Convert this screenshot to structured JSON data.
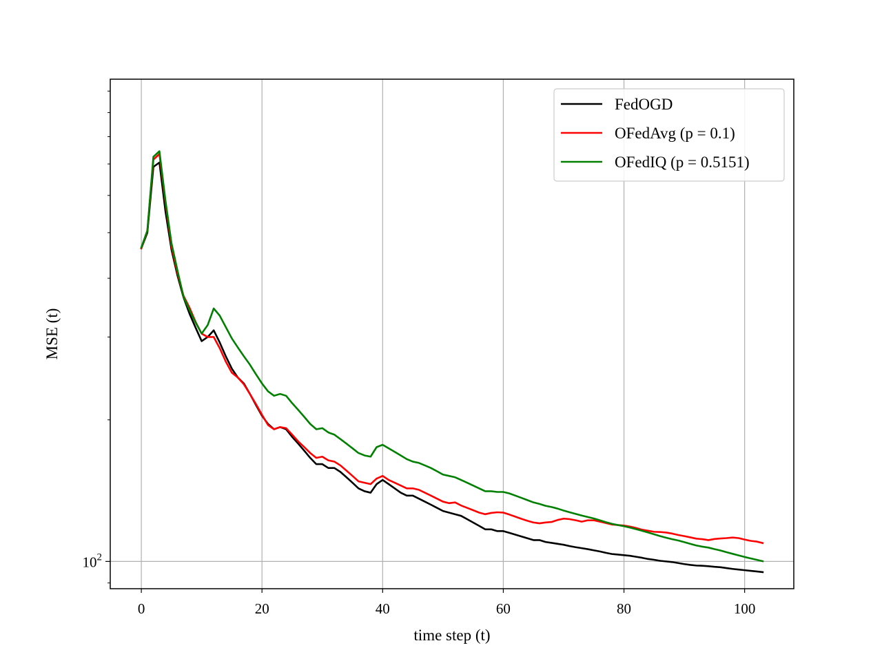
{
  "chart_data": {
    "type": "line",
    "title": "",
    "xlabel": "time step (t)",
    "ylabel": "MSE (t)",
    "xlim": [
      -5.15,
      108.15
    ],
    "ylim": [
      87.5,
      1060
    ],
    "yscale": "log",
    "grid": true,
    "legend_position": "top-right",
    "xticks": [
      0,
      20,
      40,
      60,
      80,
      100
    ],
    "xtick_labels": [
      "0",
      "20",
      "40",
      "60",
      "80",
      "100"
    ],
    "ytick_major": {
      "value": 100,
      "base": "10",
      "exponent": "2"
    },
    "series": [
      {
        "name": "FedOGD",
        "color": "#000000",
        "points": [
          [
            0,
            463
          ],
          [
            1,
            500
          ],
          [
            2,
            690
          ],
          [
            3,
            705
          ],
          [
            4,
            555
          ],
          [
            5,
            460
          ],
          [
            6,
            405
          ],
          [
            7,
            364
          ],
          [
            8,
            336
          ],
          [
            9,
            314
          ],
          [
            10,
            294
          ],
          [
            11,
            300
          ],
          [
            12,
            310
          ],
          [
            13,
            292
          ],
          [
            14,
            273
          ],
          [
            15,
            257
          ],
          [
            16,
            246
          ],
          [
            17,
            239
          ],
          [
            18,
            227
          ],
          [
            19,
            215
          ],
          [
            20,
            204
          ],
          [
            21,
            196
          ],
          [
            22,
            191
          ],
          [
            23,
            193
          ],
          [
            24,
            191
          ],
          [
            25,
            184
          ],
          [
            26,
            178
          ],
          [
            27,
            172
          ],
          [
            28,
            166
          ],
          [
            29,
            161
          ],
          [
            30,
            161
          ],
          [
            31,
            158
          ],
          [
            32,
            158
          ],
          [
            33,
            155
          ],
          [
            34,
            151
          ],
          [
            35,
            147
          ],
          [
            36,
            143
          ],
          [
            37,
            141
          ],
          [
            38,
            140
          ],
          [
            39,
            146
          ],
          [
            40,
            149
          ],
          [
            41,
            146
          ],
          [
            42,
            143
          ],
          [
            43,
            140
          ],
          [
            44,
            138
          ],
          [
            45,
            138
          ],
          [
            46,
            136
          ],
          [
            47,
            134
          ],
          [
            48,
            132
          ],
          [
            49,
            130
          ],
          [
            50,
            128
          ],
          [
            51,
            127
          ],
          [
            52,
            126
          ],
          [
            53,
            125
          ],
          [
            54,
            123
          ],
          [
            55,
            121
          ],
          [
            56,
            119
          ],
          [
            57,
            117
          ],
          [
            58,
            117
          ],
          [
            59,
            116
          ],
          [
            60,
            116
          ],
          [
            61,
            115
          ],
          [
            62,
            114
          ],
          [
            63,
            113
          ],
          [
            64,
            112
          ],
          [
            65,
            111
          ],
          [
            66,
            111
          ],
          [
            67,
            110
          ],
          [
            68,
            109.5
          ],
          [
            69,
            109
          ],
          [
            70,
            108.5
          ],
          [
            71,
            107.8
          ],
          [
            72,
            107.2
          ],
          [
            73,
            106.7
          ],
          [
            74,
            106.2
          ],
          [
            75,
            105.6
          ],
          [
            76,
            105
          ],
          [
            77,
            104.3
          ],
          [
            78,
            103.7
          ],
          [
            79,
            103.4
          ],
          [
            80,
            103.1
          ],
          [
            81,
            102.8
          ],
          [
            82,
            102.3
          ],
          [
            83,
            101.8
          ],
          [
            84,
            101.2
          ],
          [
            85,
            100.8
          ],
          [
            86,
            100.3
          ],
          [
            87,
            100
          ],
          [
            88,
            99.7
          ],
          [
            89,
            99.2
          ],
          [
            90,
            98.7
          ],
          [
            91,
            98.3
          ],
          [
            92,
            98
          ],
          [
            93,
            97.9
          ],
          [
            94,
            97.7
          ],
          [
            95,
            97.4
          ],
          [
            96,
            97.2
          ],
          [
            97,
            96.8
          ],
          [
            98,
            96.4
          ],
          [
            99,
            96.1
          ],
          [
            100,
            95.8
          ],
          [
            101,
            95.5
          ],
          [
            102,
            95.2
          ],
          [
            103,
            94.9
          ]
        ]
      },
      {
        "name": "OFedAvg (p = 0.1)",
        "color": "#ff0000",
        "points": [
          [
            0,
            463
          ],
          [
            1,
            505
          ],
          [
            2,
            715
          ],
          [
            3,
            735
          ],
          [
            4,
            580
          ],
          [
            5,
            468
          ],
          [
            6,
            410
          ],
          [
            7,
            367
          ],
          [
            8,
            346
          ],
          [
            9,
            323
          ],
          [
            10,
            305
          ],
          [
            11,
            300
          ],
          [
            12,
            300
          ],
          [
            13,
            284
          ],
          [
            14,
            266
          ],
          [
            15,
            252
          ],
          [
            16,
            246
          ],
          [
            17,
            238
          ],
          [
            18,
            227
          ],
          [
            19,
            216
          ],
          [
            20,
            205
          ],
          [
            21,
            195
          ],
          [
            22,
            191
          ],
          [
            23,
            193
          ],
          [
            24,
            192
          ],
          [
            25,
            186
          ],
          [
            26,
            180
          ],
          [
            27,
            175
          ],
          [
            28,
            170
          ],
          [
            29,
            166
          ],
          [
            30,
            167
          ],
          [
            31,
            164
          ],
          [
            32,
            163
          ],
          [
            33,
            160
          ],
          [
            34,
            156
          ],
          [
            35,
            152
          ],
          [
            36,
            148
          ],
          [
            37,
            147
          ],
          [
            38,
            146
          ],
          [
            39,
            150
          ],
          [
            40,
            152
          ],
          [
            41,
            149
          ],
          [
            42,
            147
          ],
          [
            43,
            145
          ],
          [
            44,
            143
          ],
          [
            45,
            143
          ],
          [
            46,
            142
          ],
          [
            47,
            140
          ],
          [
            48,
            138
          ],
          [
            49,
            136
          ],
          [
            50,
            134
          ],
          [
            51,
            133
          ],
          [
            52,
            133.5
          ],
          [
            53,
            131.5
          ],
          [
            54,
            130
          ],
          [
            55,
            128.5
          ],
          [
            56,
            127
          ],
          [
            57,
            126
          ],
          [
            58,
            126.8
          ],
          [
            59,
            127.2
          ],
          [
            60,
            127
          ],
          [
            61,
            125.8
          ],
          [
            62,
            124.5
          ],
          [
            63,
            123.2
          ],
          [
            64,
            122
          ],
          [
            65,
            121
          ],
          [
            66,
            120.5
          ],
          [
            67,
            121
          ],
          [
            68,
            121.3
          ],
          [
            69,
            122.5
          ],
          [
            70,
            123.3
          ],
          [
            71,
            123
          ],
          [
            72,
            122.3
          ],
          [
            73,
            121.5
          ],
          [
            74,
            122.3
          ],
          [
            75,
            122.3
          ],
          [
            76,
            121.5
          ],
          [
            77,
            120.7
          ],
          [
            78,
            119.8
          ],
          [
            79,
            119.5
          ],
          [
            80,
            119.2
          ],
          [
            81,
            118.6
          ],
          [
            82,
            117.8
          ],
          [
            83,
            116.8
          ],
          [
            84,
            116.2
          ],
          [
            85,
            115.6
          ],
          [
            86,
            115.5
          ],
          [
            87,
            115.2
          ],
          [
            88,
            114.6
          ],
          [
            89,
            113.8
          ],
          [
            90,
            113.2
          ],
          [
            91,
            112.5
          ],
          [
            92,
            111.8
          ],
          [
            93,
            111.5
          ],
          [
            94,
            111
          ],
          [
            95,
            111.6
          ],
          [
            96,
            111.9
          ],
          [
            97,
            112.1
          ],
          [
            98,
            112.4
          ],
          [
            99,
            112.1
          ],
          [
            100,
            111.3
          ],
          [
            101,
            110.6
          ],
          [
            102,
            110.2
          ],
          [
            103,
            109.4
          ]
        ]
      },
      {
        "name": "OFedIQ (p = 0.5151)",
        "color": "#008000",
        "points": [
          [
            0,
            465
          ],
          [
            1,
            505
          ],
          [
            2,
            725
          ],
          [
            3,
            745
          ],
          [
            4,
            585
          ],
          [
            5,
            475
          ],
          [
            6,
            415
          ],
          [
            7,
            365
          ],
          [
            8,
            342
          ],
          [
            9,
            322
          ],
          [
            10,
            305
          ],
          [
            11,
            318
          ],
          [
            12,
            345
          ],
          [
            13,
            333
          ],
          [
            14,
            315
          ],
          [
            15,
            298
          ],
          [
            16,
            285
          ],
          [
            17,
            273
          ],
          [
            18,
            262
          ],
          [
            19,
            250
          ],
          [
            20,
            239
          ],
          [
            21,
            230
          ],
          [
            22,
            225
          ],
          [
            23,
            227
          ],
          [
            24,
            225
          ],
          [
            25,
            217
          ],
          [
            26,
            210
          ],
          [
            27,
            203
          ],
          [
            28,
            196
          ],
          [
            29,
            191
          ],
          [
            30,
            192
          ],
          [
            31,
            188
          ],
          [
            32,
            186
          ],
          [
            33,
            182
          ],
          [
            34,
            178
          ],
          [
            35,
            174
          ],
          [
            36,
            170
          ],
          [
            37,
            168
          ],
          [
            38,
            167
          ],
          [
            39,
            175
          ],
          [
            40,
            177
          ],
          [
            41,
            174
          ],
          [
            42,
            171
          ],
          [
            43,
            168
          ],
          [
            44,
            165
          ],
          [
            45,
            163
          ],
          [
            46,
            162
          ],
          [
            47,
            160
          ],
          [
            48,
            158
          ],
          [
            49,
            155.5
          ],
          [
            50,
            153
          ],
          [
            51,
            152
          ],
          [
            52,
            151
          ],
          [
            53,
            149
          ],
          [
            54,
            147
          ],
          [
            55,
            145
          ],
          [
            56,
            143
          ],
          [
            57,
            141
          ],
          [
            58,
            141
          ],
          [
            59,
            140.5
          ],
          [
            60,
            140.5
          ],
          [
            61,
            139.5
          ],
          [
            62,
            138
          ],
          [
            63,
            136.5
          ],
          [
            64,
            135
          ],
          [
            65,
            133.5
          ],
          [
            66,
            132.5
          ],
          [
            67,
            131.3
          ],
          [
            68,
            130.5
          ],
          [
            69,
            129.5
          ],
          [
            70,
            128.3
          ],
          [
            71,
            127.2
          ],
          [
            72,
            126.2
          ],
          [
            73,
            125.2
          ],
          [
            74,
            124.3
          ],
          [
            75,
            123.4
          ],
          [
            76,
            122.3
          ],
          [
            77,
            121.2
          ],
          [
            78,
            120.2
          ],
          [
            79,
            119.5
          ],
          [
            80,
            118.8
          ],
          [
            81,
            118
          ],
          [
            82,
            117.1
          ],
          [
            83,
            116.2
          ],
          [
            84,
            115.2
          ],
          [
            85,
            114.2
          ],
          [
            86,
            113.2
          ],
          [
            87,
            112.3
          ],
          [
            88,
            111.5
          ],
          [
            89,
            110.8
          ],
          [
            90,
            109.9
          ],
          [
            91,
            109
          ],
          [
            92,
            108.1
          ],
          [
            93,
            107.5
          ],
          [
            94,
            107
          ],
          [
            95,
            106.2
          ],
          [
            96,
            105.5
          ],
          [
            97,
            104.6
          ],
          [
            98,
            103.8
          ],
          [
            99,
            103
          ],
          [
            100,
            102.2
          ],
          [
            101,
            101.5
          ],
          [
            102,
            100.8
          ],
          [
            103,
            100.1
          ]
        ]
      }
    ]
  }
}
